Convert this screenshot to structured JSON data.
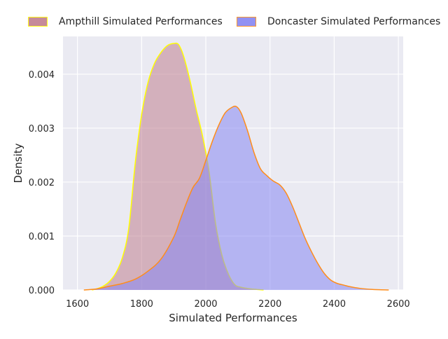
{
  "chart_data": {
    "type": "area",
    "title": "",
    "xlabel": "Simulated Performances",
    "ylabel": "Density",
    "xlim": [
      1555,
      2615
    ],
    "ylim": [
      0,
      0.0047
    ],
    "x_ticks": [
      1600,
      1800,
      2000,
      2200,
      2400,
      2600
    ],
    "x_tick_labels": [
      "1600",
      "1800",
      "2000",
      "2200",
      "2400",
      "2600"
    ],
    "y_ticks": [
      0,
      0.001,
      0.002,
      0.003,
      0.004
    ],
    "y_tick_labels": [
      "0.000",
      "0.001",
      "0.002",
      "0.003",
      "0.004"
    ],
    "grid": true,
    "legend_position": "top",
    "series": [
      {
        "name": "Ampthill Simulated Performances",
        "fill": "#c07f8f",
        "edge": "#ffff00",
        "points": [
          [
            1645,
            0
          ],
          [
            1660,
            2e-05
          ],
          [
            1680,
            7e-05
          ],
          [
            1700,
            0.00016
          ],
          [
            1720,
            0.00032
          ],
          [
            1740,
            0.0006
          ],
          [
            1760,
            0.00115
          ],
          [
            1780,
            0.00235
          ],
          [
            1800,
            0.00325
          ],
          [
            1820,
            0.00385
          ],
          [
            1840,
            0.0042
          ],
          [
            1860,
            0.0044
          ],
          [
            1880,
            0.00453
          ],
          [
            1900,
            0.00457
          ],
          [
            1915,
            0.00455
          ],
          [
            1930,
            0.00435
          ],
          [
            1950,
            0.0039
          ],
          [
            1970,
            0.00335
          ],
          [
            1990,
            0.00285
          ],
          [
            2010,
            0.0022
          ],
          [
            2030,
            0.00125
          ],
          [
            2050,
            0.00065
          ],
          [
            2070,
            0.0003
          ],
          [
            2090,
            0.0001
          ],
          [
            2110,
            5e-05
          ],
          [
            2140,
            2e-05
          ],
          [
            2180,
            0
          ]
        ]
      },
      {
        "name": "Doncaster Simulated Performances",
        "fill": "#8686f2",
        "edge": "#ff8c1a",
        "points": [
          [
            1620,
            0
          ],
          [
            1660,
            2e-05
          ],
          [
            1700,
            7e-05
          ],
          [
            1740,
            0.00012
          ],
          [
            1780,
            0.0002
          ],
          [
            1820,
            0.00035
          ],
          [
            1860,
            0.00057
          ],
          [
            1900,
            0.00098
          ],
          [
            1920,
            0.0013
          ],
          [
            1940,
            0.00162
          ],
          [
            1960,
            0.0019
          ],
          [
            1980,
            0.00207
          ],
          [
            2000,
            0.0024
          ],
          [
            2020,
            0.00275
          ],
          [
            2040,
            0.00305
          ],
          [
            2060,
            0.00328
          ],
          [
            2080,
            0.00338
          ],
          [
            2095,
            0.0034
          ],
          [
            2110,
            0.00328
          ],
          [
            2130,
            0.00295
          ],
          [
            2150,
            0.00255
          ],
          [
            2170,
            0.00225
          ],
          [
            2190,
            0.00212
          ],
          [
            2210,
            0.00202
          ],
          [
            2230,
            0.00195
          ],
          [
            2250,
            0.0018
          ],
          [
            2270,
            0.00155
          ],
          [
            2290,
            0.00125
          ],
          [
            2310,
            0.00095
          ],
          [
            2330,
            0.0007
          ],
          [
            2350,
            0.00048
          ],
          [
            2370,
            0.0003
          ],
          [
            2390,
            0.00018
          ],
          [
            2410,
            0.00012
          ],
          [
            2430,
            9e-05
          ],
          [
            2450,
            6e-05
          ],
          [
            2480,
            3e-05
          ],
          [
            2520,
            1e-05
          ],
          [
            2570,
            0
          ]
        ]
      }
    ]
  }
}
